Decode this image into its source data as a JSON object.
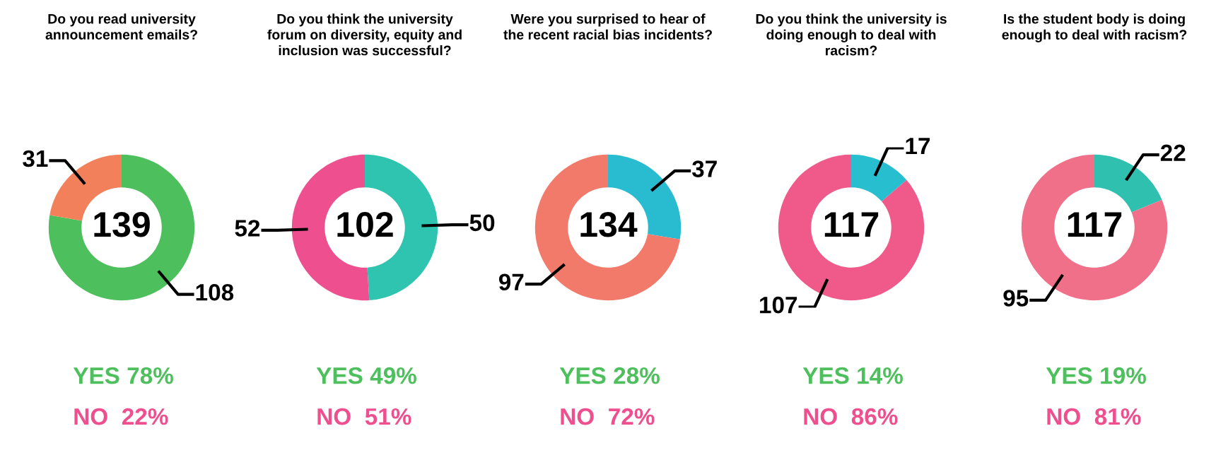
{
  "chart_data": [
    {
      "type": "donut",
      "title": "Do you read university\nannouncement emails?",
      "categories": [
        null,
        null
      ],
      "values": [
        108,
        31
      ],
      "colors": [
        "#4dbf5c",
        "#f2805a"
      ],
      "data_labels": true,
      "annotations": [
        "139",
        "YES 78%",
        "NO  22%"
      ]
    },
    {
      "type": "donut",
      "title": "Do you think the university\nforum on diversity, equity and\ninclusion was successful?",
      "categories": [
        null,
        null
      ],
      "values": [
        50,
        52
      ],
      "colors": [
        "#2ec4b0",
        "#ee4f8e"
      ],
      "data_labels": true,
      "annotations": [
        "102",
        "YES 49%",
        "NO  51%"
      ]
    },
    {
      "type": "donut",
      "title": "Were you surprised to hear of\nthe recent racial bias incidents?",
      "categories": [
        null,
        null
      ],
      "values": [
        37,
        97
      ],
      "colors": [
        "#29bcd0",
        "#f27a6a"
      ],
      "data_labels": true,
      "annotations": [
        "134",
        "YES 28%",
        "NO  72%"
      ]
    },
    {
      "type": "donut",
      "title": "Do you think the university is\ndoing enough to deal with\nracism?",
      "categories": [
        null,
        null
      ],
      "values": [
        17,
        107
      ],
      "colors": [
        "#27bfd0",
        "#ef5a8a"
      ],
      "data_labels": true,
      "annotations": [
        "117",
        "YES 14%",
        "NO  86%"
      ]
    },
    {
      "type": "donut",
      "title": "Is the student body is doing\nenough to deal with racism?",
      "categories": [
        null,
        null
      ],
      "values": [
        22,
        95
      ],
      "colors": [
        "#2fc0b0",
        "#f0708a"
      ],
      "data_labels": true,
      "annotations": [
        "117",
        "YES 19%",
        "NO  81%"
      ]
    }
  ]
}
